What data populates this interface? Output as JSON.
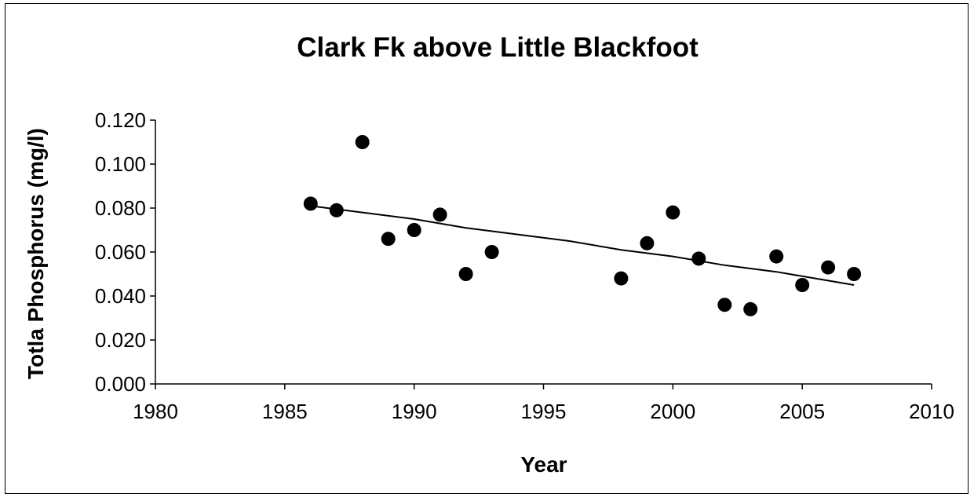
{
  "chart_data": {
    "type": "scatter",
    "title": "Clark Fk above Little Blackfoot",
    "xlabel": "Year",
    "ylabel": "Totla Phosphorus (mg/l)",
    "xlim": [
      1980,
      2010
    ],
    "ylim": [
      0.0,
      0.12
    ],
    "xticks": [
      1980,
      1985,
      1990,
      1995,
      2000,
      2005,
      2010
    ],
    "yticks": [
      "0.000",
      "0.020",
      "0.040",
      "0.060",
      "0.080",
      "0.100",
      "0.120"
    ],
    "grid": false,
    "legend": "none",
    "points": [
      {
        "x": 1986,
        "y": 0.082
      },
      {
        "x": 1987,
        "y": 0.079
      },
      {
        "x": 1988,
        "y": 0.11
      },
      {
        "x": 1989,
        "y": 0.066
      },
      {
        "x": 1990,
        "y": 0.07
      },
      {
        "x": 1991,
        "y": 0.077
      },
      {
        "x": 1992,
        "y": 0.05
      },
      {
        "x": 1993,
        "y": 0.06
      },
      {
        "x": 1998,
        "y": 0.048
      },
      {
        "x": 1999,
        "y": 0.064
      },
      {
        "x": 2000,
        "y": 0.078
      },
      {
        "x": 2001,
        "y": 0.057
      },
      {
        "x": 2002,
        "y": 0.036
      },
      {
        "x": 2003,
        "y": 0.034
      },
      {
        "x": 2004,
        "y": 0.058
      },
      {
        "x": 2005,
        "y": 0.045
      },
      {
        "x": 2006,
        "y": 0.053
      },
      {
        "x": 2007,
        "y": 0.05
      }
    ],
    "trendline": [
      {
        "x": 1986,
        "y": 0.081
      },
      {
        "x": 1988,
        "y": 0.078
      },
      {
        "x": 1990,
        "y": 0.075
      },
      {
        "x": 1992,
        "y": 0.071
      },
      {
        "x": 1994,
        "y": 0.068
      },
      {
        "x": 1996,
        "y": 0.065
      },
      {
        "x": 1998,
        "y": 0.061
      },
      {
        "x": 2000,
        "y": 0.058
      },
      {
        "x": 2002,
        "y": 0.054
      },
      {
        "x": 2004,
        "y": 0.051
      },
      {
        "x": 2006,
        "y": 0.047
      },
      {
        "x": 2007,
        "y": 0.045
      }
    ],
    "colors": {
      "marker": "#000000",
      "line": "#000000",
      "background": "#ffffff"
    }
  }
}
